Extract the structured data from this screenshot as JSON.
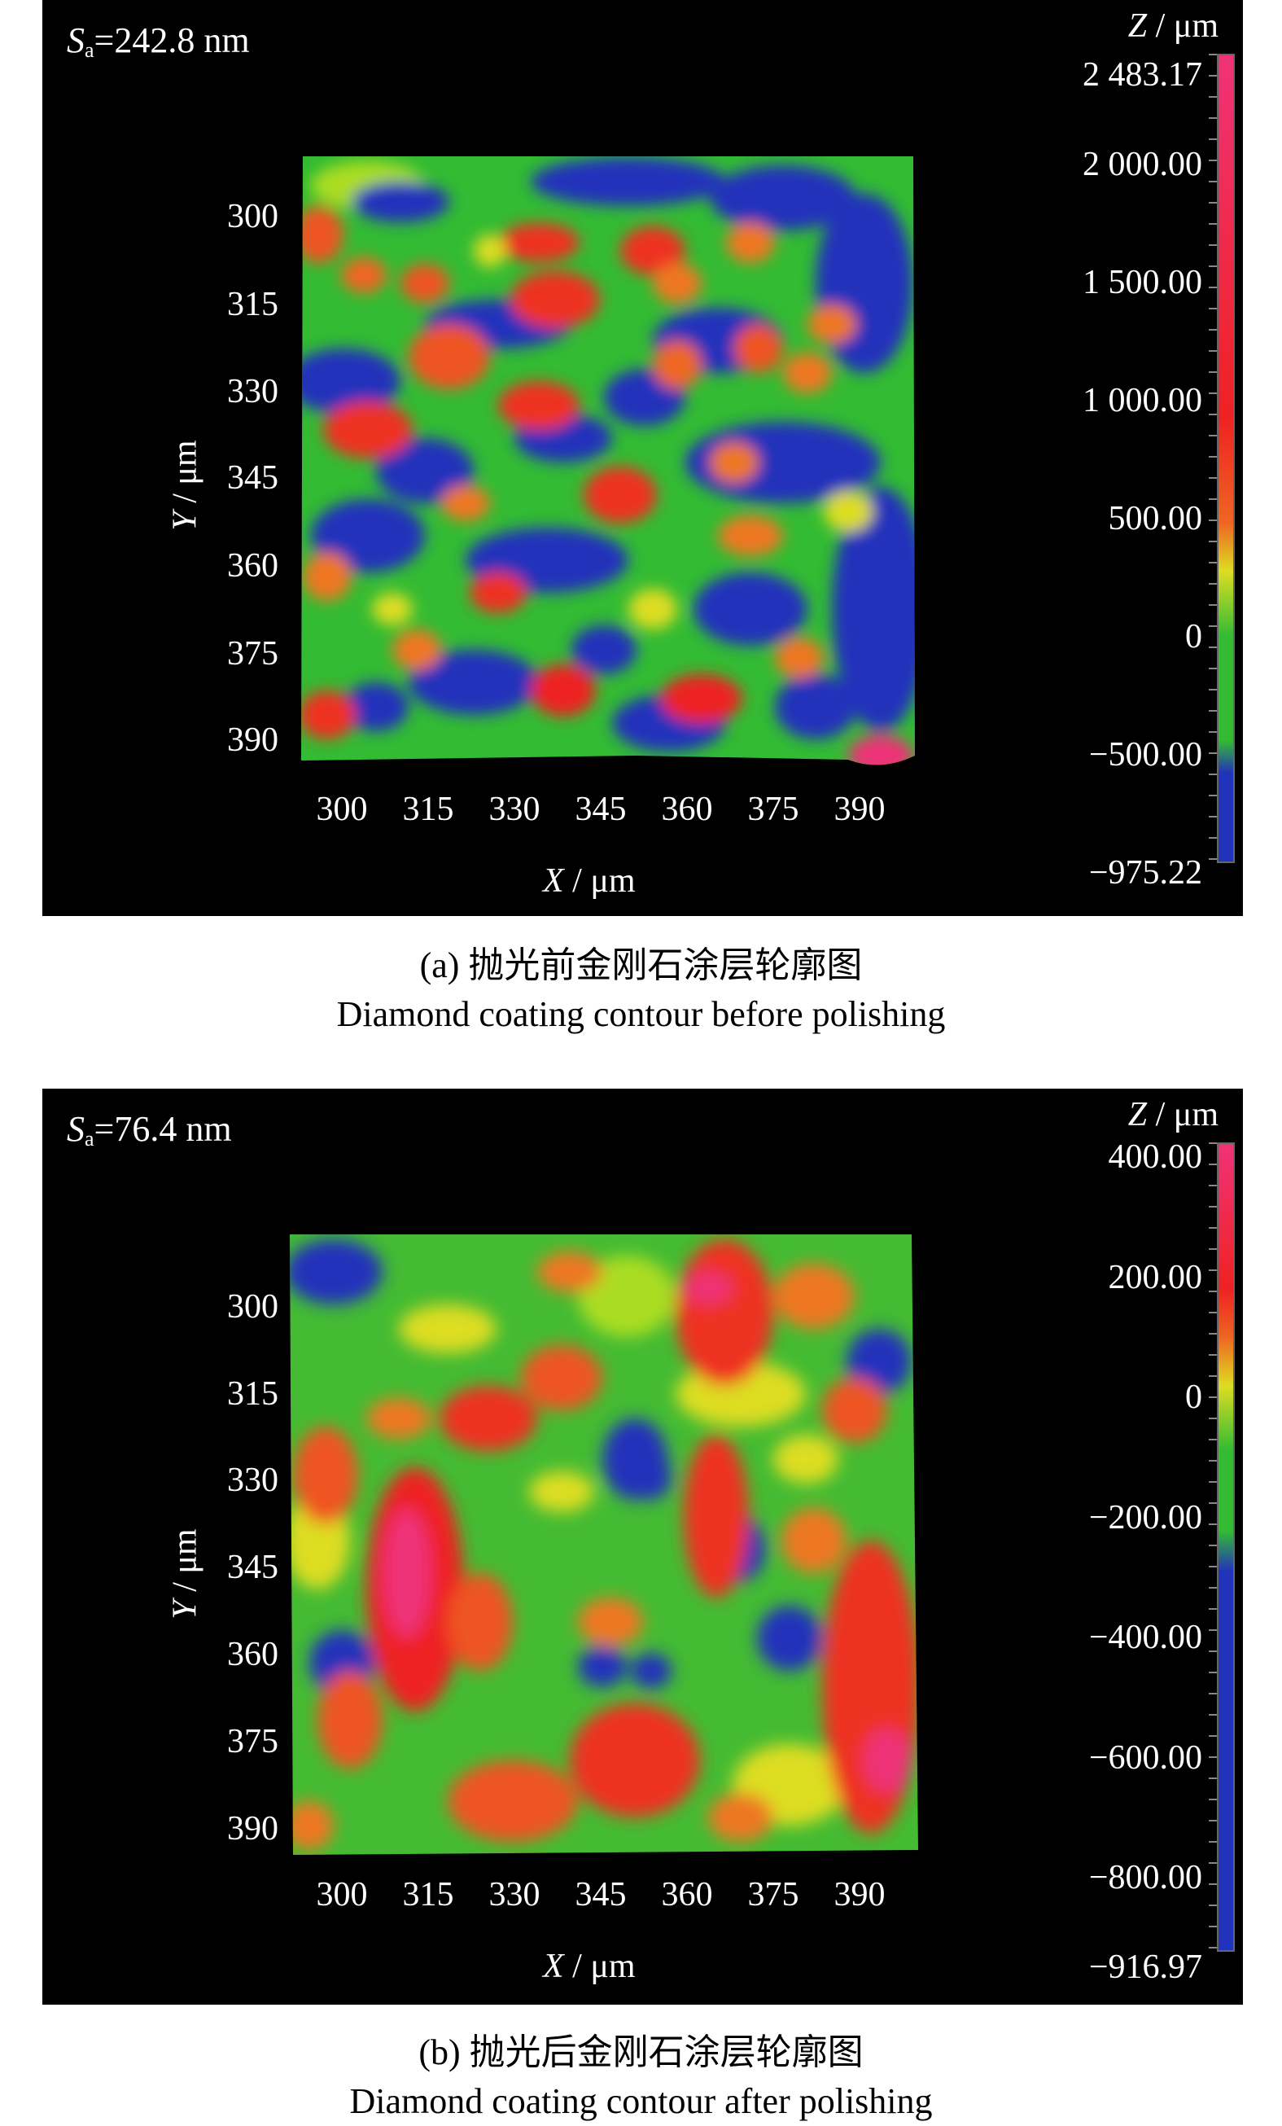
{
  "panels": [
    {
      "sa_symbol": "S",
      "sa_sub": "a",
      "sa_value": "=242.8 nm",
      "y_ticks": [
        "300",
        "315",
        "330",
        "345",
        "360",
        "375",
        "390"
      ],
      "x_ticks": [
        "300",
        "315",
        "330",
        "345",
        "360",
        "375",
        "390"
      ],
      "y_label_var": "Y",
      "y_label_unit": " / μm",
      "x_label_var": "X",
      "x_label_unit": " / μm",
      "z_label_var": "Z",
      "z_label_unit": " / μm",
      "colorbar_ticks": [
        "2 483.17",
        "2 000.00",
        "1 500.00",
        "1 000.00",
        "500.00",
        "0",
        "−500.00",
        "−975.22"
      ],
      "caption_cn": "(a) 抛光前金刚石涂层轮廓图",
      "caption_en": "Diamond coating contour before polishing"
    },
    {
      "sa_symbol": "S",
      "sa_sub": "a",
      "sa_value": "=76.4 nm",
      "y_ticks": [
        "300",
        "315",
        "330",
        "345",
        "360",
        "375",
        "390"
      ],
      "x_ticks": [
        "300",
        "315",
        "330",
        "345",
        "360",
        "375",
        "390"
      ],
      "y_label_var": "Y",
      "y_label_unit": " / μm",
      "x_label_var": "X",
      "x_label_unit": " / μm",
      "z_label_var": "Z",
      "z_label_unit": " / μm",
      "colorbar_ticks": [
        "400.00",
        "200.00",
        "0",
        "−200.00",
        "−400.00",
        "−600.00",
        "−800.00",
        "−916.97"
      ],
      "caption_cn": "(b) 抛光后金刚石涂层轮廓图",
      "caption_en": "Diamond coating contour after polishing"
    }
  ],
  "colors": {
    "background": "#000000",
    "low": "#2233bb",
    "mid": "#33bb33",
    "high": "#ee2222",
    "peak": "#ee3377"
  }
}
